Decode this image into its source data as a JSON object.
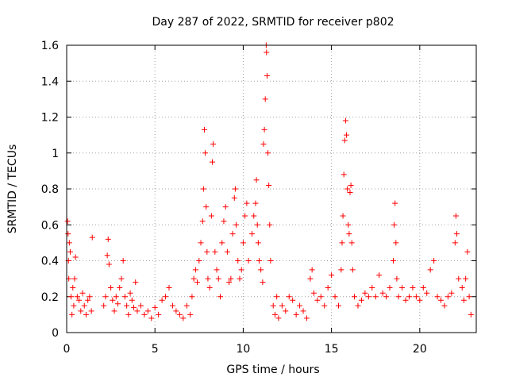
{
  "chart_data": {
    "type": "scatter",
    "title": "Day 287 of 2022, SRMTID for receiver p802",
    "xlabel": "GPS time / hours",
    "ylabel": "SRMTID / TECUs",
    "xlim": [
      0,
      23.2
    ],
    "ylim": [
      0,
      1.6
    ],
    "x_ticks": [
      0,
      5,
      10,
      15,
      20
    ],
    "x_tick_labels": [
      "0",
      "5",
      "10",
      "15",
      "20"
    ],
    "y_ticks": [
      0,
      0.2,
      0.4,
      0.6,
      0.8,
      1,
      1.2,
      1.4,
      1.6
    ],
    "y_tick_labels": [
      "0",
      "0.2",
      "0.4",
      "0.6",
      "0.8",
      "1",
      "1.2",
      "1.4",
      "1.6"
    ],
    "grid": true,
    "marker": "plus",
    "marker_color": "#ff0000",
    "series": [
      {
        "name": "SRMTID",
        "points": [
          [
            0.05,
            0.62
          ],
          [
            0.08,
            0.55
          ],
          [
            0.1,
            0.4
          ],
          [
            0.12,
            0.3
          ],
          [
            0.15,
            0.5
          ],
          [
            0.2,
            0.45
          ],
          [
            0.25,
            0.2
          ],
          [
            0.3,
            0.1
          ],
          [
            0.35,
            0.25
          ],
          [
            0.4,
            0.15
          ],
          [
            0.45,
            0.3
          ],
          [
            0.5,
            0.42
          ],
          [
            0.6,
            0.2
          ],
          [
            0.7,
            0.18
          ],
          [
            0.8,
            0.12
          ],
          [
            0.9,
            0.22
          ],
          [
            1.0,
            0.15
          ],
          [
            1.1,
            0.1
          ],
          [
            1.2,
            0.18
          ],
          [
            1.3,
            0.2
          ],
          [
            1.4,
            0.12
          ],
          [
            1.45,
            0.53
          ],
          [
            2.1,
            0.15
          ],
          [
            2.2,
            0.2
          ],
          [
            2.3,
            0.43
          ],
          [
            2.35,
            0.52
          ],
          [
            2.4,
            0.38
          ],
          [
            2.5,
            0.25
          ],
          [
            2.6,
            0.18
          ],
          [
            2.7,
            0.12
          ],
          [
            2.8,
            0.2
          ],
          [
            2.9,
            0.16
          ],
          [
            3.0,
            0.25
          ],
          [
            3.1,
            0.3
          ],
          [
            3.2,
            0.4
          ],
          [
            3.3,
            0.2
          ],
          [
            3.4,
            0.15
          ],
          [
            3.5,
            0.1
          ],
          [
            3.6,
            0.22
          ],
          [
            3.7,
            0.18
          ],
          [
            3.8,
            0.14
          ],
          [
            3.9,
            0.28
          ],
          [
            4.0,
            0.12
          ],
          [
            4.2,
            0.15
          ],
          [
            4.4,
            0.1
          ],
          [
            4.6,
            0.12
          ],
          [
            4.8,
            0.08
          ],
          [
            5.0,
            0.14
          ],
          [
            5.2,
            0.1
          ],
          [
            5.4,
            0.18
          ],
          [
            5.6,
            0.2
          ],
          [
            5.8,
            0.25
          ],
          [
            6.0,
            0.15
          ],
          [
            6.2,
            0.12
          ],
          [
            6.4,
            0.1
          ],
          [
            6.6,
            0.08
          ],
          [
            6.8,
            0.15
          ],
          [
            7.0,
            0.1
          ],
          [
            7.1,
            0.2
          ],
          [
            7.2,
            0.3
          ],
          [
            7.3,
            0.35
          ],
          [
            7.4,
            0.28
          ],
          [
            7.5,
            0.4
          ],
          [
            7.6,
            0.5
          ],
          [
            7.7,
            0.62
          ],
          [
            7.75,
            0.8
          ],
          [
            7.8,
            1.13
          ],
          [
            7.85,
            1.0
          ],
          [
            7.9,
            0.7
          ],
          [
            7.95,
            0.45
          ],
          [
            8.0,
            0.3
          ],
          [
            8.1,
            0.25
          ],
          [
            8.2,
            0.65
          ],
          [
            8.25,
            0.95
          ],
          [
            8.3,
            1.05
          ],
          [
            8.4,
            0.45
          ],
          [
            8.5,
            0.35
          ],
          [
            8.6,
            0.3
          ],
          [
            8.7,
            0.2
          ],
          [
            8.8,
            0.5
          ],
          [
            8.9,
            0.62
          ],
          [
            9.0,
            0.7
          ],
          [
            9.1,
            0.45
          ],
          [
            9.2,
            0.28
          ],
          [
            9.3,
            0.3
          ],
          [
            9.4,
            0.55
          ],
          [
            9.5,
            0.75
          ],
          [
            9.55,
            0.8
          ],
          [
            9.6,
            0.6
          ],
          [
            9.7,
            0.4
          ],
          [
            9.8,
            0.3
          ],
          [
            9.9,
            0.35
          ],
          [
            10.0,
            0.5
          ],
          [
            10.1,
            0.65
          ],
          [
            10.2,
            0.72
          ],
          [
            10.3,
            0.4
          ],
          [
            10.5,
            0.55
          ],
          [
            10.6,
            0.65
          ],
          [
            10.7,
            0.72
          ],
          [
            10.75,
            0.85
          ],
          [
            10.8,
            0.6
          ],
          [
            10.85,
            0.5
          ],
          [
            10.9,
            0.4
          ],
          [
            11.0,
            0.35
          ],
          [
            11.1,
            0.28
          ],
          [
            11.15,
            1.05
          ],
          [
            11.2,
            1.13
          ],
          [
            11.25,
            1.3
          ],
          [
            11.3,
            1.6
          ],
          [
            11.32,
            1.56
          ],
          [
            11.35,
            1.43
          ],
          [
            11.4,
            1.0
          ],
          [
            11.45,
            0.82
          ],
          [
            11.5,
            0.6
          ],
          [
            11.55,
            0.4
          ],
          [
            11.7,
            0.15
          ],
          [
            11.8,
            0.1
          ],
          [
            11.9,
            0.2
          ],
          [
            12.0,
            0.08
          ],
          [
            12.2,
            0.15
          ],
          [
            12.4,
            0.12
          ],
          [
            12.6,
            0.2
          ],
          [
            12.8,
            0.18
          ],
          [
            13.0,
            0.1
          ],
          [
            13.2,
            0.15
          ],
          [
            13.4,
            0.12
          ],
          [
            13.6,
            0.08
          ],
          [
            13.8,
            0.3
          ],
          [
            13.9,
            0.35
          ],
          [
            14.0,
            0.22
          ],
          [
            14.2,
            0.18
          ],
          [
            14.4,
            0.2
          ],
          [
            14.6,
            0.15
          ],
          [
            14.8,
            0.25
          ],
          [
            15.0,
            0.32
          ],
          [
            15.2,
            0.2
          ],
          [
            15.4,
            0.15
          ],
          [
            15.55,
            0.35
          ],
          [
            15.6,
            0.5
          ],
          [
            15.65,
            0.65
          ],
          [
            15.7,
            0.88
          ],
          [
            15.75,
            1.07
          ],
          [
            15.8,
            1.18
          ],
          [
            15.85,
            1.1
          ],
          [
            15.9,
            0.8
          ],
          [
            15.95,
            0.6
          ],
          [
            16.0,
            0.55
          ],
          [
            16.05,
            0.78
          ],
          [
            16.1,
            0.82
          ],
          [
            16.15,
            0.5
          ],
          [
            16.2,
            0.35
          ],
          [
            16.3,
            0.2
          ],
          [
            16.5,
            0.15
          ],
          [
            16.7,
            0.18
          ],
          [
            16.9,
            0.22
          ],
          [
            17.1,
            0.2
          ],
          [
            17.3,
            0.25
          ],
          [
            17.5,
            0.2
          ],
          [
            17.7,
            0.32
          ],
          [
            17.9,
            0.22
          ],
          [
            18.1,
            0.2
          ],
          [
            18.3,
            0.25
          ],
          [
            18.5,
            0.4
          ],
          [
            18.55,
            0.6
          ],
          [
            18.6,
            0.72
          ],
          [
            18.65,
            0.5
          ],
          [
            18.7,
            0.3
          ],
          [
            18.8,
            0.2
          ],
          [
            19.0,
            0.25
          ],
          [
            19.2,
            0.18
          ],
          [
            19.4,
            0.2
          ],
          [
            19.6,
            0.25
          ],
          [
            19.8,
            0.2
          ],
          [
            20.0,
            0.18
          ],
          [
            20.2,
            0.25
          ],
          [
            20.4,
            0.22
          ],
          [
            20.6,
            0.35
          ],
          [
            20.8,
            0.4
          ],
          [
            21.0,
            0.2
          ],
          [
            21.2,
            0.18
          ],
          [
            21.4,
            0.15
          ],
          [
            21.6,
            0.2
          ],
          [
            21.8,
            0.22
          ],
          [
            22.0,
            0.5
          ],
          [
            22.05,
            0.65
          ],
          [
            22.1,
            0.55
          ],
          [
            22.2,
            0.3
          ],
          [
            22.4,
            0.25
          ],
          [
            22.5,
            0.18
          ],
          [
            22.6,
            0.3
          ],
          [
            22.7,
            0.45
          ],
          [
            22.8,
            0.2
          ],
          [
            22.9,
            0.1
          ]
        ]
      }
    ]
  }
}
